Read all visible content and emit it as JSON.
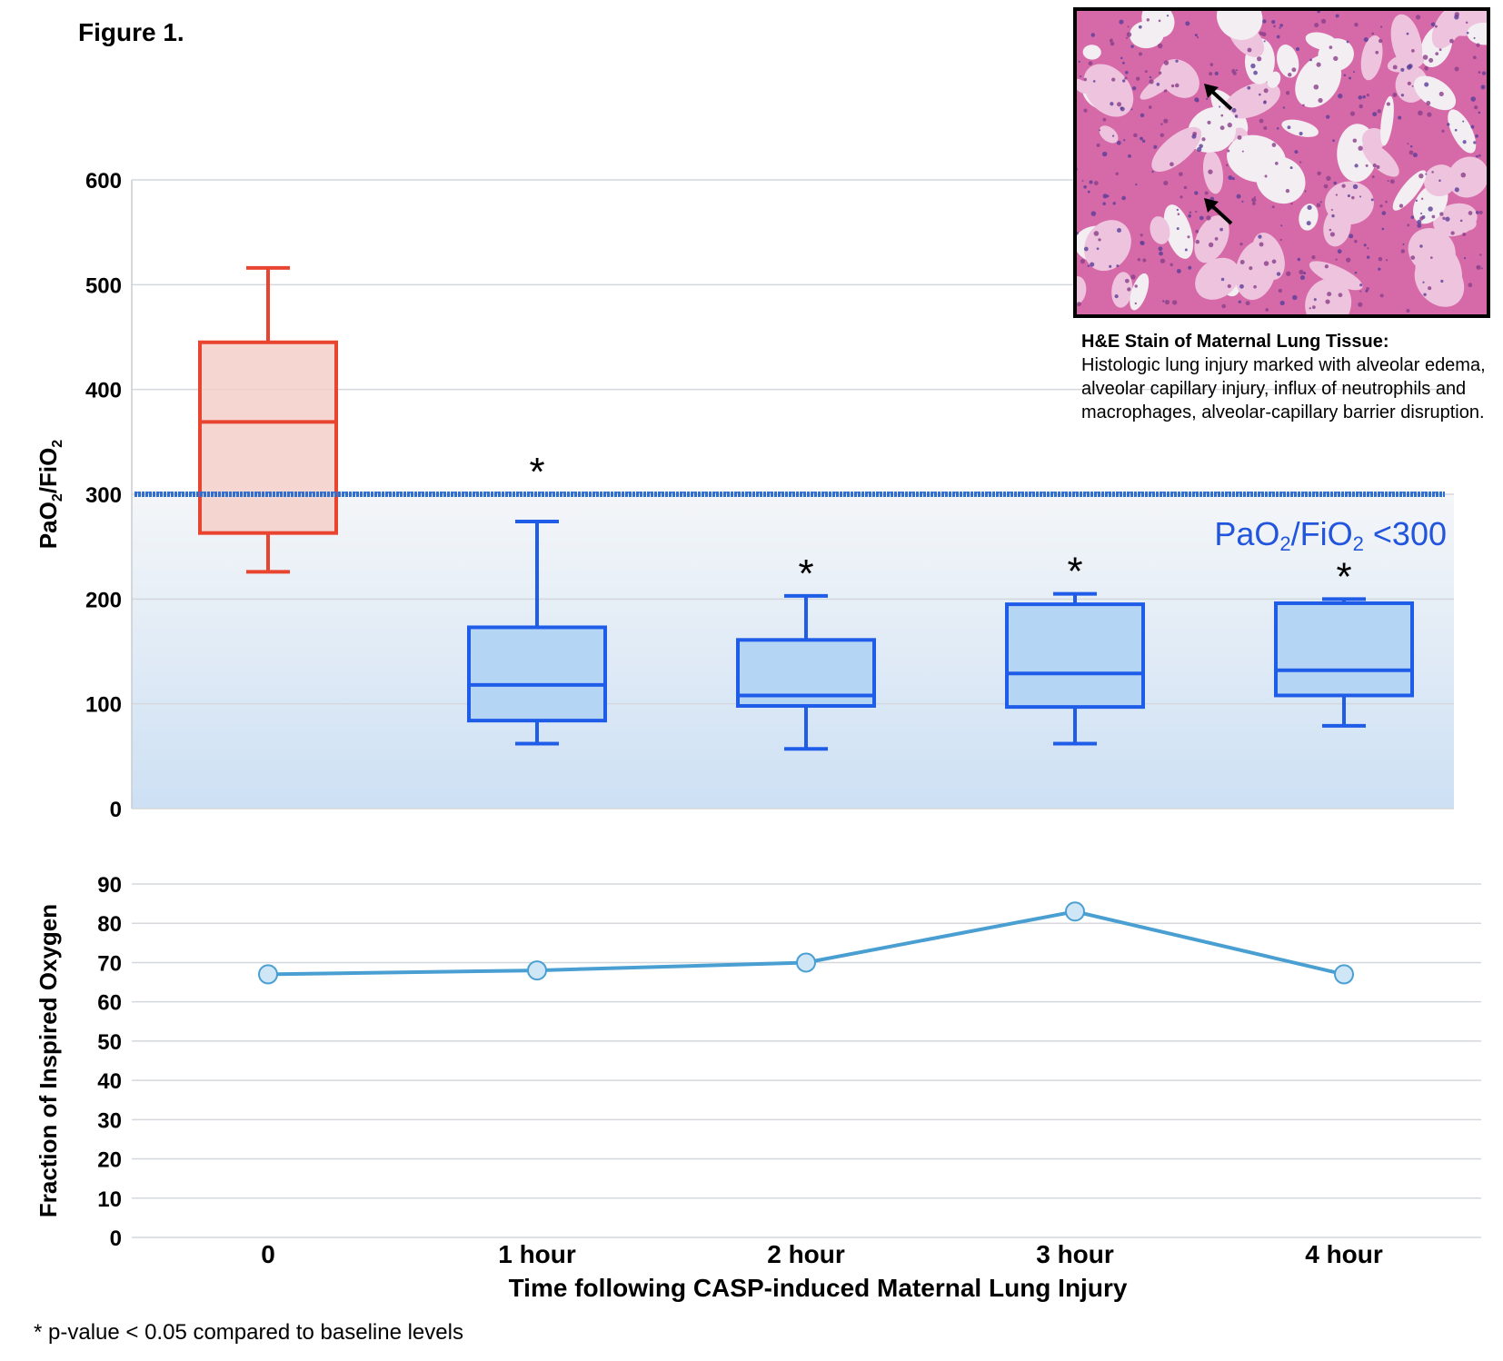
{
  "figure_label": "Figure 1.",
  "caption": {
    "title": "H&E Stain of Maternal Lung Tissue:",
    "body": "Histologic lung injury marked with alveolar edema, alveolar capillary injury, influx of neutrophils and macrophages, alveolar-capillary barrier disruption."
  },
  "footnote": "* p-value < 0.05 compared to baseline levels",
  "image": {
    "type": "photomicrograph",
    "subject": "H&E stained lung tissue",
    "icon": "photo-icon"
  },
  "chart_data": [
    {
      "type": "box",
      "ylabel_main": "PaO",
      "ylabel_sub1": "2",
      "ylabel_mid": "/FiO",
      "ylabel_sub2": "2",
      "ylim": [
        0,
        600
      ],
      "yticks": [
        0,
        100,
        200,
        300,
        400,
        500,
        600
      ],
      "grid": true,
      "categories": [
        "0",
        "1 hour",
        "2 hour",
        "3 hour",
        "4 hour"
      ],
      "boxes": [
        {
          "category": "0",
          "min": 226,
          "q1": 263,
          "median": 369,
          "q3": 445,
          "max": 516,
          "color": "#e8442f",
          "fill": "#f5cfc9",
          "significant": false
        },
        {
          "category": "1 hour",
          "min": 62,
          "q1": 84,
          "median": 118,
          "q3": 173,
          "max": 274,
          "color": "#1f5ce8",
          "fill": "#b5d5f5",
          "significant": true
        },
        {
          "category": "2 hour",
          "min": 57,
          "q1": 98,
          "median": 108,
          "q3": 161,
          "max": 203,
          "color": "#1f5ce8",
          "fill": "#b5d5f5",
          "significant": true
        },
        {
          "category": "3 hour",
          "min": 62,
          "q1": 97,
          "median": 129,
          "q3": 195,
          "max": 205,
          "color": "#1f5ce8",
          "fill": "#b5d5f5",
          "significant": true
        },
        {
          "category": "4 hour",
          "min": 79,
          "q1": 108,
          "median": 132,
          "q3": 196,
          "max": 200,
          "color": "#1f5ce8",
          "fill": "#b5d5f5",
          "significant": true
        }
      ],
      "significance_marker": "*",
      "threshold": {
        "value": 300,
        "label_main": "PaO",
        "label_sub1": "2",
        "label_mid": "/FiO",
        "label_sub2": "2",
        "label_end": " <300",
        "color": "#2f6fd0",
        "label_color": "#2255dd"
      }
    },
    {
      "type": "line",
      "ylabel": "Fraction of Inspired Oxygen",
      "xlabel": "Time following CASP-induced Maternal Lung Injury",
      "ylim": [
        0,
        90
      ],
      "yticks": [
        0,
        10,
        20,
        30,
        40,
        50,
        60,
        70,
        80,
        90
      ],
      "grid": true,
      "categories": [
        "0",
        "1 hour",
        "2 hour",
        "3 hour",
        "4 hour"
      ],
      "series": [
        {
          "values": [
            67,
            68,
            70,
            83,
            67
          ],
          "color": "#4a9fd2",
          "marker_fill": "#cfe6f7"
        }
      ]
    }
  ]
}
